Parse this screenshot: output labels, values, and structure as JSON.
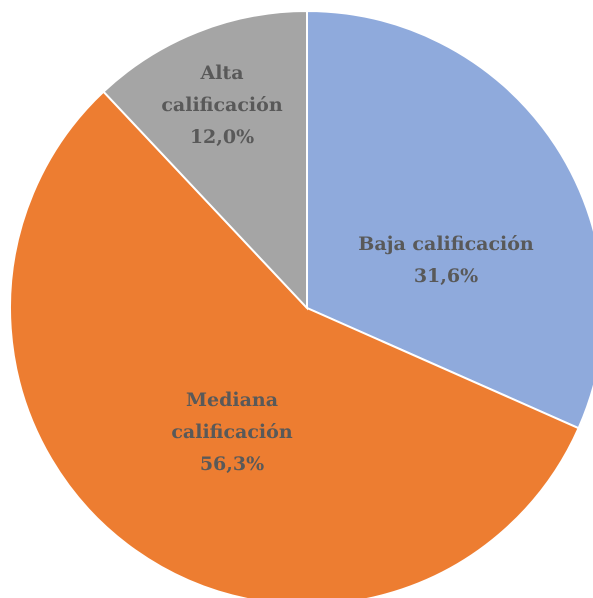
{
  "chart_data": {
    "type": "pie",
    "categories": [
      "Baja calificación",
      "Mediana calificación",
      "Alta calificación"
    ],
    "values": [
      31.6,
      56.3,
      12.0
    ],
    "value_labels": [
      "31,6%",
      "56,3%",
      "12,0%"
    ],
    "colors": [
      "#8faadc",
      "#ed7d31",
      "#a5a5a5"
    ]
  }
}
